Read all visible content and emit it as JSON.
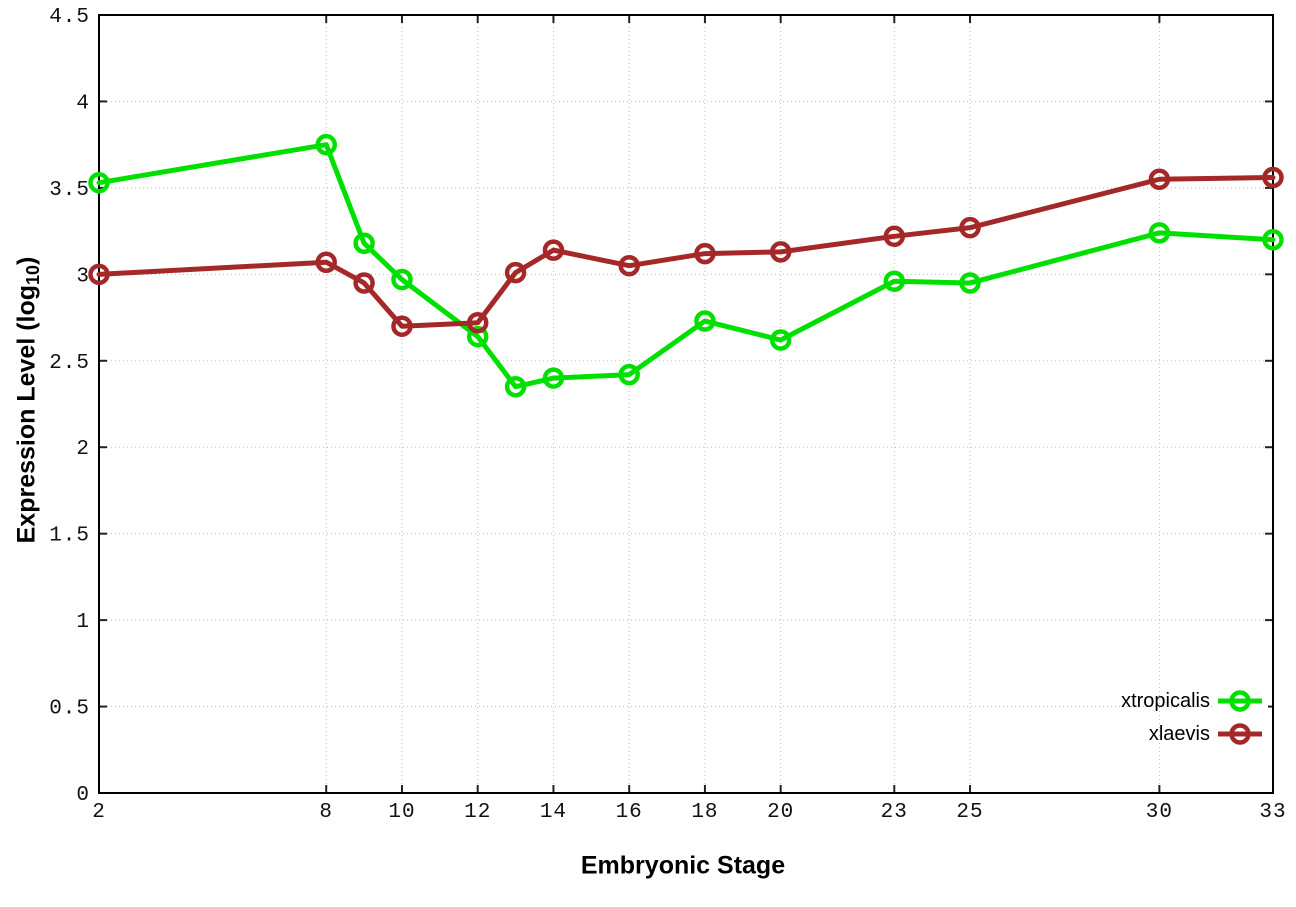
{
  "chart_data": {
    "type": "line",
    "title": "",
    "xlabel": "Embryonic Stage",
    "ylabel": "Expression Level (log10)",
    "ylabel_pre": "Expression Level (log",
    "ylabel_sub": "10",
    "ylabel_post": ")",
    "xlim": [
      2,
      33
    ],
    "ylim": [
      0,
      4.5
    ],
    "x_ticks": [
      2,
      8,
      10,
      12,
      14,
      16,
      18,
      20,
      23,
      25,
      30,
      33
    ],
    "y_ticks": [
      0,
      0.5,
      1,
      1.5,
      2,
      2.5,
      3,
      3.5,
      4,
      4.5
    ],
    "y_tick_labels": [
      "0",
      "0.5",
      "1",
      "1.5",
      "2",
      "2.5",
      "3",
      "3.5",
      "4",
      "4.5"
    ],
    "grid": true,
    "grid_style": "dotted",
    "legend_position": "inside-bottom-right",
    "x": [
      2,
      8,
      9,
      10,
      12,
      13,
      14,
      16,
      18,
      20,
      23,
      25,
      30,
      33
    ],
    "series": [
      {
        "name": "xtropicalis",
        "color": "#00e000",
        "values": [
          3.53,
          3.75,
          3.18,
          2.97,
          2.64,
          2.35,
          2.4,
          2.42,
          2.73,
          2.62,
          2.96,
          2.95,
          3.24,
          3.2
        ]
      },
      {
        "name": "xlaevis",
        "color": "#a52828",
        "values": [
          3.0,
          3.07,
          2.95,
          2.7,
          2.72,
          3.01,
          3.14,
          3.05,
          3.12,
          3.13,
          3.22,
          3.27,
          3.55,
          3.56
        ]
      }
    ]
  },
  "style": {
    "background": "#ffffff",
    "border_color": "#000000",
    "grid_color": "#bbbbbb",
    "tick_color": "#222222",
    "text_color": "#111111"
  }
}
